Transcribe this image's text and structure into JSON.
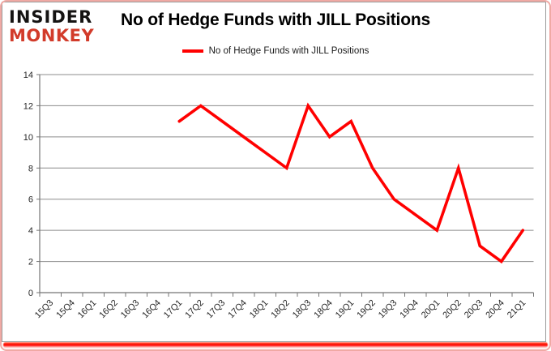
{
  "logo": {
    "line1": "INSIDER",
    "line2": "MONKEY"
  },
  "header": {
    "title": "No of Hedge Funds with JILL Positions"
  },
  "legend": {
    "label": "No of Hedge Funds with JILL Positions",
    "swatch_color": "#FF0000"
  },
  "colors": {
    "series_line": "#FF0000",
    "logo_red": "#D23B2A",
    "frame_pink": "#F0A9A4",
    "gridline": "#8C8C8C",
    "axis": "#757575",
    "tick_label": "#262626"
  },
  "chart_data": {
    "type": "line",
    "title": "No of Hedge Funds with JILL Positions",
    "xlabel": "",
    "ylabel": "",
    "categories": [
      "15Q3",
      "15Q4",
      "16Q1",
      "16Q2",
      "16Q3",
      "16Q4",
      "17Q1",
      "17Q2",
      "17Q3",
      "17Q4",
      "18Q1",
      "18Q2",
      "18Q3",
      "18Q4",
      "19Q1",
      "19Q2",
      "19Q3",
      "19Q4",
      "20Q1",
      "20Q2",
      "20Q3",
      "20Q4",
      "21Q1"
    ],
    "series": [
      {
        "name": "No of Hedge Funds with JILL Positions",
        "color": "#FF0000",
        "values": [
          null,
          null,
          null,
          null,
          null,
          null,
          11,
          12,
          11,
          10,
          9,
          8,
          12,
          10,
          11,
          8,
          6,
          5,
          4,
          8,
          3,
          2,
          4
        ]
      }
    ],
    "ylim": [
      0,
      14
    ],
    "ytick_step": 2,
    "grid": "horizontal",
    "legend_position": "top-center"
  }
}
